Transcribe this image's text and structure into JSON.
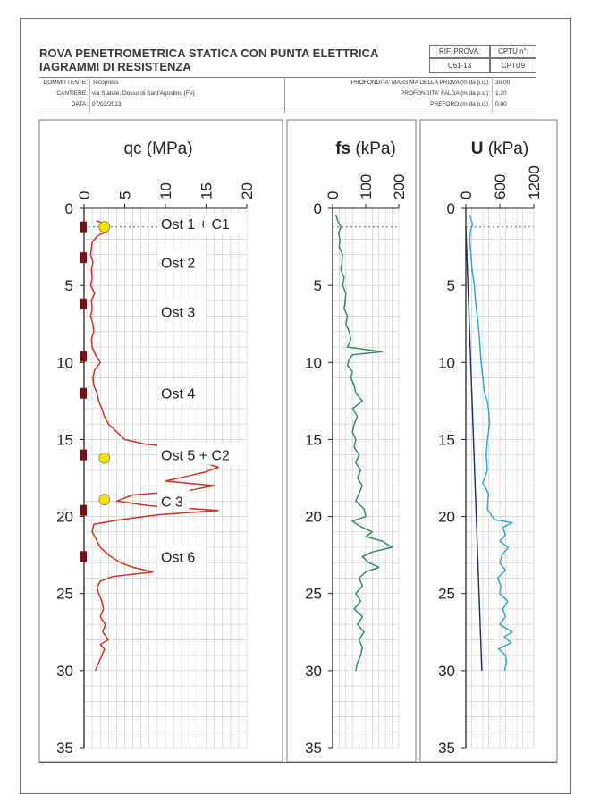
{
  "header": {
    "title_line1": "ROVA PENETROMETRICA STATICA CON PUNTA ELETTRICA",
    "title_line2": "IAGRAMMI DI RESISTENZA",
    "rif_label": "RIF. PROVA:",
    "rif_value": "U61-13",
    "cptu_label": "CPTU n°:",
    "cptu_value": "CPTU9",
    "committente_label": "COMMITTENTE:",
    "committente_value": "Tecopress",
    "cantiere_label": "CANTIERE:",
    "cantiere_value": "via Statale, Dosso di Sant'Agostino (Fe)",
    "data_label": "DATA:",
    "data_value": "07/03/2013",
    "profondita_label": "PROFONDITA' MASSIMA DELLA PROVA (m da p.c.):",
    "profondita_value": "30,00",
    "falda_label": "PROFONDITA' FALDA (m da p.c.):",
    "falda_value": "1,20",
    "preforo_label": "PREFORO (m da p.c.):",
    "preforo_value": "0,00"
  },
  "colors": {
    "qc": "#d8311b",
    "fs": "#2f8f5a",
    "u": "#2fa8d8",
    "u0": "#1b2b66",
    "marker": "#f4e300",
    "sample": "#7b1010",
    "water": "#5a7bd0",
    "grid": "#c9c9c9"
  },
  "chart_data": [
    {
      "type": "line",
      "title": "qc (MPa)",
      "title_bold": "qc",
      "title_unit": "(MPa)",
      "xlim": [
        0,
        20
      ],
      "ylim": [
        0,
        35
      ],
      "xticks": [
        0,
        5,
        10,
        15,
        20
      ],
      "yticks": [
        0,
        5,
        10,
        15,
        20,
        25,
        30,
        35
      ],
      "water_table_depth": 1.2,
      "series": [
        {
          "depth": [
            0.8,
            1.0,
            1.2,
            1.5,
            1.8,
            2.2,
            2.6,
            3.0,
            3.5,
            4.0,
            4.5,
            5.0,
            5.5,
            6.0,
            6.5,
            7.0,
            7.5,
            8.0,
            8.5,
            9.0,
            9.5,
            10.0,
            10.5,
            11.0,
            11.5,
            12.0,
            12.5,
            13.0,
            13.5,
            14.0,
            14.5,
            15.0,
            15.3,
            15.6,
            16.0,
            16.4,
            16.8,
            17.1,
            17.4,
            17.7,
            18.0,
            18.3,
            18.6,
            19.0,
            19.3,
            19.6,
            19.9,
            20.2,
            20.5,
            21.0,
            21.5,
            22.0,
            22.5,
            23.0,
            23.3,
            23.6,
            23.9,
            24.2,
            24.6,
            25.0,
            25.5,
            26.0,
            26.5,
            27.0,
            27.5,
            28.0,
            28.3,
            28.6,
            29.0,
            29.5,
            30.0
          ],
          "qc": [
            1.5,
            2.6,
            2.0,
            2.8,
            1.6,
            1.0,
            0.9,
            0.8,
            1.1,
            0.9,
            1.0,
            0.8,
            1.3,
            0.9,
            1.0,
            0.8,
            1.1,
            1.2,
            0.9,
            1.0,
            1.4,
            2.0,
            1.3,
            1.1,
            1.2,
            1.6,
            1.8,
            2.2,
            2.5,
            3.0,
            4.0,
            5.0,
            7.5,
            13.0,
            15.0,
            14.0,
            16.5,
            15.0,
            12.5,
            10.0,
            16.0,
            13.0,
            6.0,
            4.0,
            8.0,
            16.5,
            9.0,
            4.5,
            1.2,
            1.0,
            1.5,
            2.0,
            3.0,
            4.5,
            6.0,
            8.5,
            3.5,
            2.0,
            1.6,
            1.8,
            2.2,
            2.4,
            2.0,
            2.6,
            2.3,
            3.0,
            2.0,
            2.5,
            2.2,
            1.8,
            1.4
          ]
        }
      ],
      "sample_depths": [
        1.2,
        3.2,
        6.2,
        9.6,
        12.0,
        16.0,
        19.6,
        22.6
      ],
      "markers": [
        {
          "depth": 1.2,
          "value": 2.5
        },
        {
          "depth": 16.2,
          "value": 2.5
        },
        {
          "depth": 18.9,
          "value": 2.5
        }
      ],
      "annotations": [
        {
          "label": "Ost 1 + C1",
          "depth": 1.0
        },
        {
          "label": "Ost 2",
          "depth": 3.5
        },
        {
          "label": "Ost 3",
          "depth": 6.7
        },
        {
          "label": "Ost 4",
          "depth": 12.0
        },
        {
          "label": "Ost 5 + C2",
          "depth": 16.0
        },
        {
          "label": "C 3",
          "depth": 19.0
        },
        {
          "label": "Ost 6",
          "depth": 22.6
        }
      ]
    },
    {
      "type": "line",
      "title": "fs (kPa)",
      "title_bold": "fs",
      "title_unit": "(kPa)",
      "xlim": [
        0,
        200
      ],
      "ylim": [
        0,
        35
      ],
      "xticks": [
        0,
        100,
        200
      ],
      "yticks": [
        0,
        5,
        10,
        15,
        20,
        25,
        30,
        35
      ],
      "water_table_depth": 1.2,
      "series": [
        {
          "depth": [
            0.4,
            0.8,
            1.2,
            1.6,
            2.0,
            2.5,
            3.0,
            3.5,
            4.0,
            4.5,
            5.0,
            5.5,
            6.0,
            6.5,
            7.0,
            7.5,
            8.0,
            8.5,
            9.0,
            9.3,
            9.5,
            9.8,
            10.2,
            10.6,
            11.0,
            11.5,
            12.0,
            12.5,
            13.0,
            13.5,
            14.0,
            14.5,
            15.0,
            15.5,
            16.0,
            16.5,
            17.0,
            17.5,
            18.0,
            18.5,
            19.0,
            19.5,
            20.0,
            20.3,
            20.6,
            21.0,
            21.3,
            21.6,
            22.0,
            22.3,
            22.6,
            23.0,
            23.3,
            23.6,
            24.0,
            24.5,
            25.0,
            25.5,
            26.0,
            26.5,
            27.0,
            27.5,
            28.0,
            28.5,
            29.0,
            29.5,
            30.0
          ],
          "fs": [
            10,
            15,
            25,
            18,
            22,
            20,
            30,
            28,
            25,
            35,
            30,
            40,
            38,
            35,
            45,
            40,
            50,
            55,
            45,
            150,
            60,
            50,
            45,
            60,
            55,
            65,
            70,
            90,
            60,
            75,
            65,
            60,
            70,
            65,
            80,
            70,
            85,
            75,
            90,
            80,
            70,
            95,
            100,
            60,
            80,
            120,
            100,
            150,
            180,
            120,
            90,
            110,
            140,
            100,
            80,
            90,
            70,
            85,
            65,
            90,
            75,
            95,
            80,
            90,
            85,
            75,
            70
          ]
        }
      ]
    },
    {
      "type": "line",
      "title": "U (kPa)",
      "title_bold": "U",
      "title_unit": "(kPa)",
      "xlim": [
        0,
        1200
      ],
      "ylim": [
        0,
        35
      ],
      "xticks": [
        0,
        600,
        1200
      ],
      "yticks": [
        0,
        5,
        10,
        15,
        20,
        25,
        30,
        35
      ],
      "water_table_depth": 1.2,
      "series": [
        {
          "name": "u",
          "depth": [
            0.4,
            1.0,
            1.5,
            2.0,
            3.0,
            4.0,
            5.0,
            6.0,
            7.0,
            8.0,
            9.0,
            10.0,
            11.0,
            12.0,
            12.5,
            13.0,
            14.0,
            15.0,
            16.0,
            17.0,
            17.8,
            18.5,
            19.5,
            20.2,
            20.4,
            20.7,
            21.2,
            21.6,
            22.0,
            22.5,
            23.0,
            23.5,
            24.0,
            24.5,
            25.0,
            25.5,
            26.0,
            26.5,
            27.0,
            27.5,
            27.8,
            28.2,
            28.6,
            29.0,
            29.5,
            30.0
          ],
          "u": [
            60,
            120,
            80,
            70,
            90,
            110,
            150,
            170,
            200,
            230,
            250,
            270,
            300,
            330,
            380,
            400,
            420,
            380,
            360,
            380,
            300,
            400,
            380,
            500,
            820,
            650,
            700,
            600,
            750,
            640,
            600,
            700,
            560,
            620,
            600,
            740,
            650,
            700,
            600,
            820,
            680,
            800,
            580,
            700,
            720,
            680
          ]
        },
        {
          "name": "u0",
          "depth": [
            1.2,
            30.0
          ],
          "u": [
            0,
            282
          ]
        }
      ]
    }
  ]
}
